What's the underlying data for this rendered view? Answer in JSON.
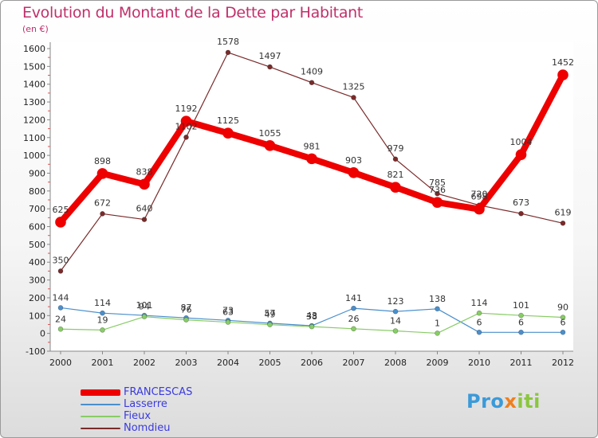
{
  "title": "Evolution du Montant de la Dette par Habitant",
  "unit": "(en €)",
  "logo": {
    "part1": "Pro",
    "part2": "x",
    "part3": "iti"
  },
  "chart_data": {
    "type": "line",
    "title": "Evolution du Montant de la Dette par Habitant",
    "subtitle": "(en €)",
    "x": [
      2000,
      2001,
      2002,
      2003,
      2004,
      2005,
      2006,
      2007,
      2008,
      2009,
      2010,
      2011,
      2012
    ],
    "ylim": [
      -100,
      1600
    ],
    "yticks": [
      -100,
      0,
      100,
      200,
      300,
      400,
      500,
      600,
      700,
      800,
      900,
      1000,
      1100,
      1200,
      1300,
      1400,
      1500,
      1600
    ],
    "grid": false,
    "legend": "bottom-left",
    "series": [
      {
        "name": "Nomdieu",
        "color": "#7a2a2a",
        "values": [
          350,
          672,
          640,
          1102,
          1578,
          1497,
          1409,
          1325,
          979,
          785,
          720,
          673,
          619
        ]
      },
      {
        "name": "Lasserre",
        "color": "#4a8fcc",
        "values": [
          144,
          114,
          101,
          87,
          73,
          57,
          43,
          141,
          123,
          138,
          6,
          6,
          6
        ]
      },
      {
        "name": "Fieux",
        "color": "#88cc66",
        "values": [
          24,
          19,
          94,
          76,
          63,
          49,
          38,
          26,
          14,
          1,
          114,
          101,
          90
        ]
      },
      {
        "name": "FRANCESCAS",
        "color": "#ee0000",
        "values": [
          625,
          898,
          838,
          1192,
          1125,
          1055,
          981,
          903,
          821,
          736,
          698,
          1004,
          1452
        ]
      }
    ],
    "legend_order": [
      "FRANCESCAS",
      "Lasserre",
      "Fieux",
      "Nomdieu"
    ]
  }
}
